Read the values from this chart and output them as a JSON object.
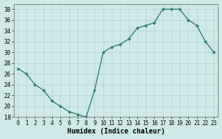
{
  "x": [
    0,
    1,
    2,
    3,
    4,
    5,
    6,
    7,
    8,
    9,
    10,
    11,
    12,
    13,
    14,
    15,
    16,
    17,
    18,
    19,
    20,
    21,
    22,
    23
  ],
  "y": [
    27,
    26,
    24,
    23,
    21,
    20,
    19,
    18.5,
    18,
    23,
    30,
    31,
    31.5,
    32.5,
    34.5,
    35,
    35.5,
    38,
    38,
    38,
    36,
    35,
    32,
    30
  ],
  "line_color": "#2e7d6e",
  "marker": "D",
  "marker_size": 2.0,
  "line_width": 1.0,
  "bg_color": "#cfe8e8",
  "grid_color": "#b8d4d4",
  "xlabel": "Humidex (Indice chaleur)",
  "ylim": [
    18,
    39
  ],
  "xlim": [
    -0.5,
    23.5
  ],
  "yticks": [
    18,
    20,
    22,
    24,
    26,
    28,
    30,
    32,
    34,
    36,
    38
  ],
  "xticks": [
    0,
    1,
    2,
    3,
    4,
    5,
    6,
    7,
    8,
    9,
    10,
    11,
    12,
    13,
    14,
    15,
    16,
    17,
    18,
    19,
    20,
    21,
    22,
    23
  ],
  "xlabel_fontsize": 7,
  "tick_fontsize": 5.5,
  "ytick_fontsize": 6.0
}
